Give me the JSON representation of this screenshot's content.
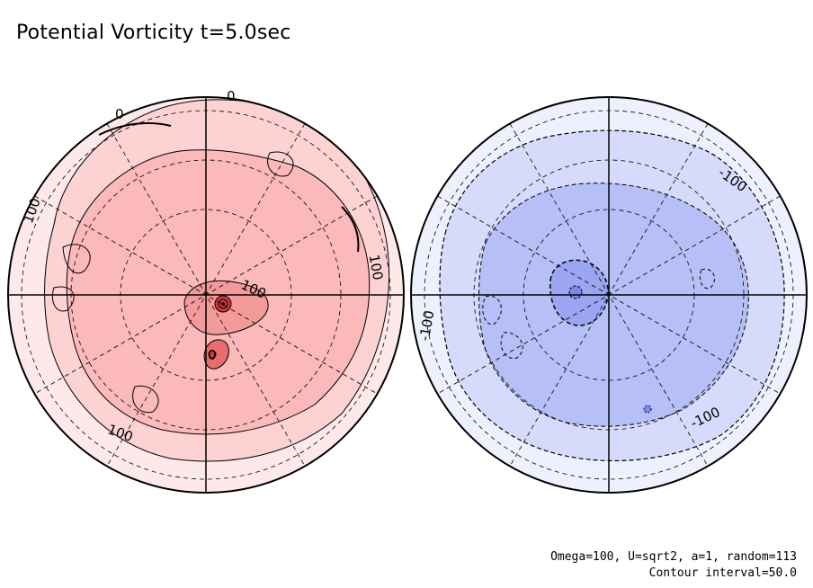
{
  "title": "Potential Vorticity t=5.0sec",
  "footer": {
    "params": "Omega=100, U=sqrt2, a=1, random=113",
    "interval": "Contour interval=50.0"
  },
  "colors": {
    "north_levels": [
      "#fde9e9",
      "#fdd2d2",
      "#fbb9b9",
      "#f39a9a",
      "#e86e6e",
      "#d33a3a"
    ],
    "south_levels": [
      "#eef0fd",
      "#d6dbfb",
      "#b6bff6",
      "#9aa6f1",
      "#7c89eb"
    ],
    "grid": "#000000"
  },
  "hemispheres": [
    {
      "name": "north",
      "contour_labels": [
        "0",
        "0",
        "100",
        "100",
        "100",
        "100",
        "0"
      ]
    },
    {
      "name": "south",
      "contour_labels": [
        "-100",
        "-100",
        "-100"
      ]
    }
  ]
}
